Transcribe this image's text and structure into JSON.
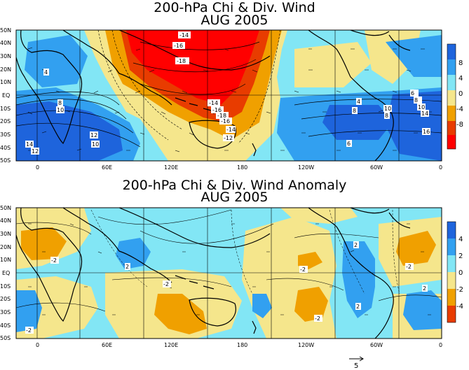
{
  "top_panel": {
    "title_line1": "200-hPa Chi & Div. Wind",
    "title_line2": "AUG 2005",
    "contour_labels": [
      "-14",
      "-16",
      "-18",
      "-14",
      "-16",
      "-18",
      "-16",
      "-14",
      "-12",
      "4",
      "8",
      "10",
      "12",
      "10",
      "14",
      "12",
      "8",
      "10",
      "4",
      "6",
      "8",
      "10",
      "14",
      "16",
      "6",
      "8"
    ],
    "colorbar_labels": [
      "8",
      "4",
      "0",
      "-4",
      "-8"
    ],
    "colorbar_colors": [
      "#1e64dc",
      "#32a0f0",
      "#82e6f5",
      "#f5e68c",
      "#f0a000",
      "#e83c00",
      "#ff0000"
    ]
  },
  "bottom_panel": {
    "title_line1": "200-hPa Chi & Div. Wind Anomaly",
    "title_line2": "AUG 2005",
    "contour_labels": [
      "-2",
      "2",
      "-2",
      "-2",
      "-2",
      "2",
      "-2",
      "-2",
      "2",
      "2"
    ],
    "colorbar_labels": [
      "4",
      "2",
      "0",
      "-2",
      "-4"
    ],
    "colorbar_colors": [
      "#1e64dc",
      "#32a0f0",
      "#82e6f5",
      "#f5e68c",
      "#f0a000",
      "#e83c00"
    ]
  },
  "axes": {
    "lat_labels": [
      "50N",
      "40N",
      "30N",
      "20N",
      "10N",
      "EQ",
      "10S",
      "20S",
      "30S",
      "40S",
      "50S"
    ],
    "lon_labels": [
      "0",
      "60E",
      "120E",
      "180",
      "120W",
      "60W",
      "0"
    ]
  },
  "reference_vector": {
    "label": "5"
  }
}
